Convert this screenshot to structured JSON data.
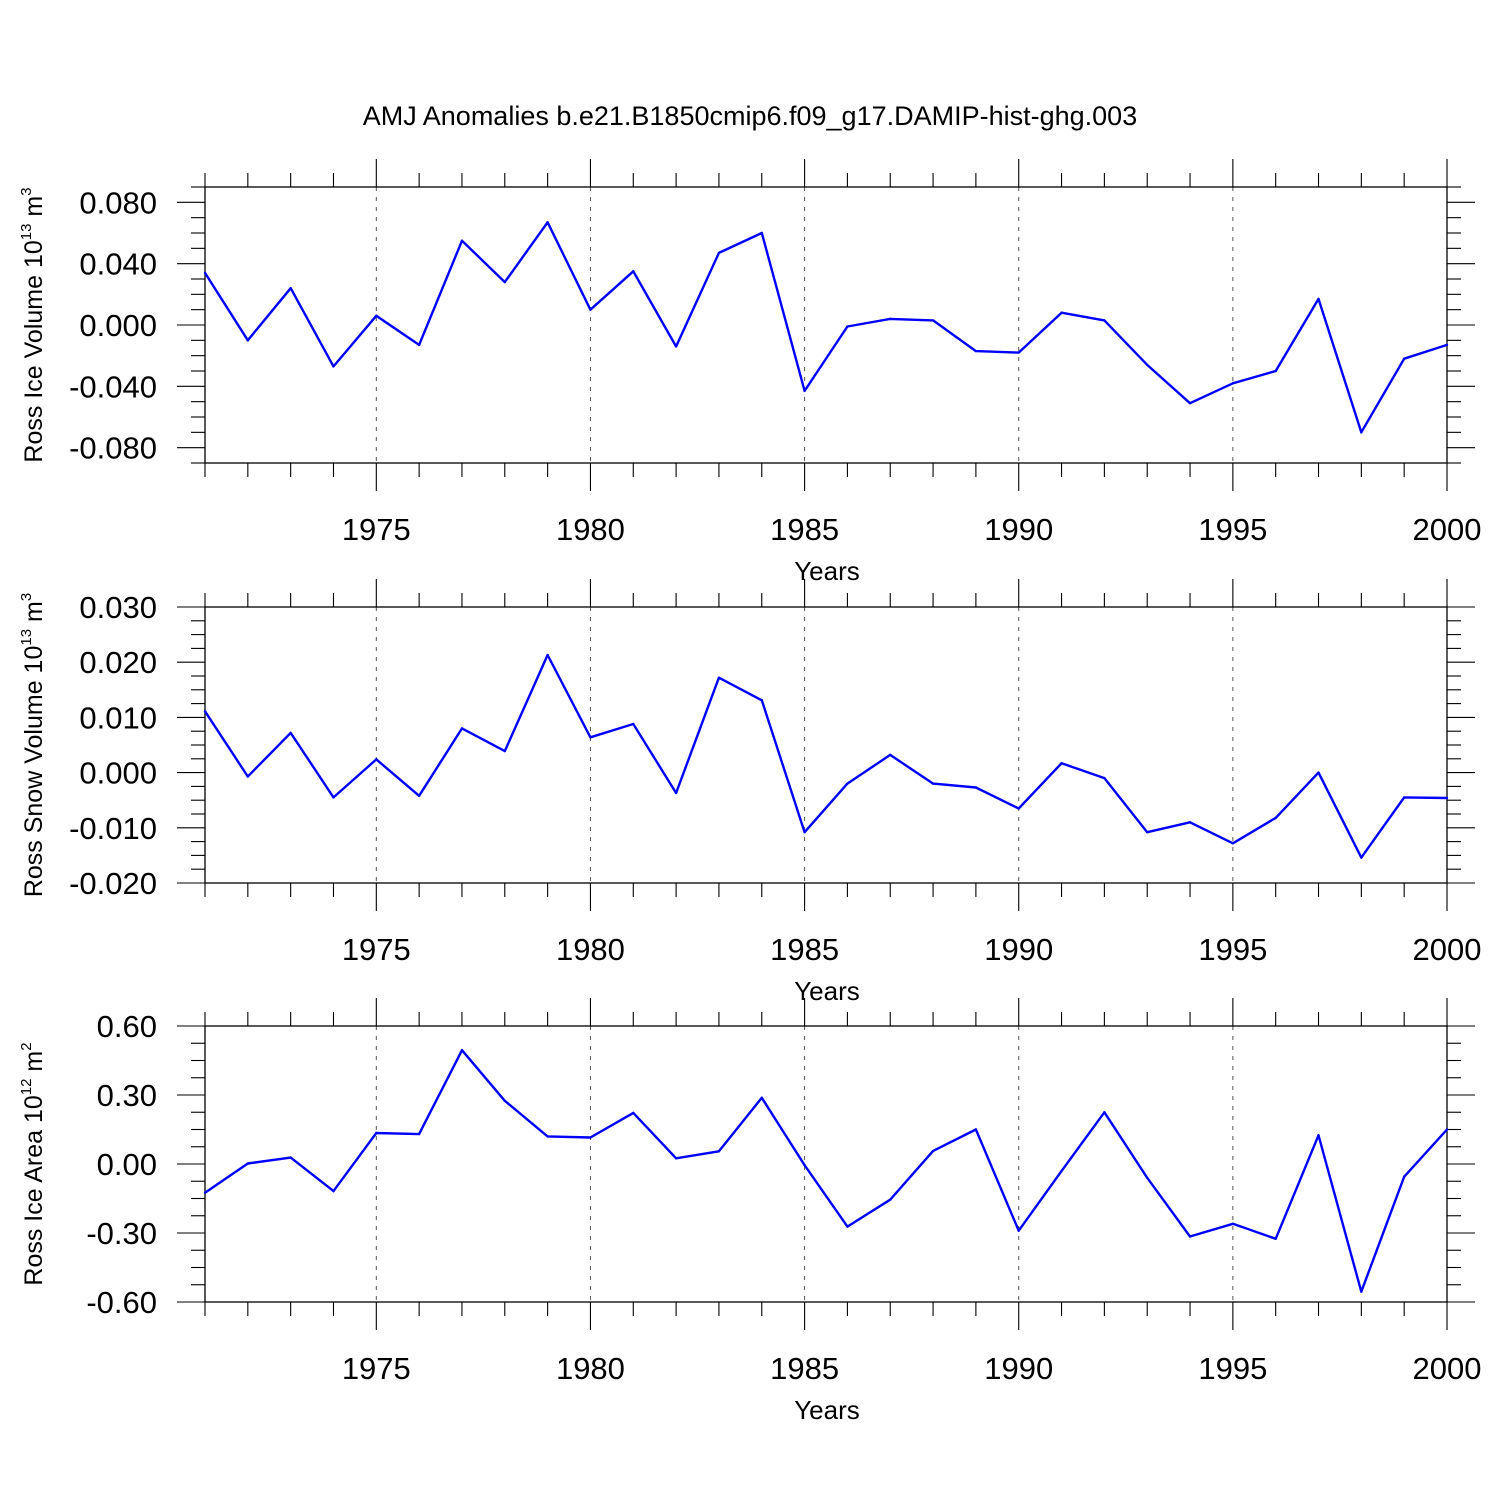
{
  "title": "AMJ Anomalies b.e21.B1850cmip6.f09_g17.DAMIP-hist-ghg.003",
  "colors": {
    "series": "#0000ff",
    "axes": "#000000",
    "grid": "#555555"
  },
  "chart_data": [
    {
      "type": "line",
      "xlabel": "Years",
      "ylabel": {
        "text": "Ross Ice Volume 10",
        "sup": "13",
        "unit": "m",
        "unit_sup": "3"
      },
      "xlim": [
        1971,
        2000
      ],
      "ylim": [
        -0.09,
        0.09
      ],
      "xticks": [
        1975,
        1980,
        1985,
        1990,
        1995,
        2000
      ],
      "xtick_labels": [
        "1975",
        "1980",
        "1985",
        "1990",
        "1995",
        "2000"
      ],
      "yticks": [
        -0.08,
        -0.04,
        0.0,
        0.04,
        0.08
      ],
      "ytick_labels": [
        "-0.080",
        "-0.040",
        "0.000",
        "0.040",
        "0.080"
      ],
      "grid": "dashed vertical lines at major x ticks",
      "x": [
        1971,
        1972,
        1973,
        1974,
        1975,
        1976,
        1977,
        1978,
        1979,
        1980,
        1981,
        1982,
        1983,
        1984,
        1985,
        1986,
        1987,
        1988,
        1989,
        1990,
        1991,
        1992,
        1993,
        1994,
        1995,
        1996,
        1997,
        1998,
        1999,
        2000
      ],
      "values": [
        0.034,
        -0.01,
        0.024,
        -0.027,
        0.006,
        -0.013,
        0.055,
        0.028,
        0.067,
        0.01,
        0.035,
        -0.014,
        0.047,
        0.06,
        -0.043,
        -0.001,
        0.004,
        0.003,
        -0.017,
        -0.018,
        0.008,
        0.003,
        -0.026,
        -0.051,
        -0.038,
        -0.03,
        0.017,
        -0.07,
        -0.022,
        -0.013
      ]
    },
    {
      "type": "line",
      "xlabel": "Years",
      "ylabel": {
        "text": "Ross Snow Volume 10",
        "sup": "13",
        "unit": "m",
        "unit_sup": "3"
      },
      "xlim": [
        1971,
        2000
      ],
      "ylim": [
        -0.02,
        0.03
      ],
      "xticks": [
        1975,
        1980,
        1985,
        1990,
        1995,
        2000
      ],
      "xtick_labels": [
        "1975",
        "1980",
        "1985",
        "1990",
        "1995",
        "2000"
      ],
      "yticks": [
        -0.02,
        -0.01,
        0.0,
        0.01,
        0.02,
        0.03
      ],
      "ytick_labels": [
        "-0.020",
        "-0.010",
        "0.000",
        "0.010",
        "0.020",
        "0.030"
      ],
      "grid": "dashed vertical lines at major x ticks",
      "x": [
        1971,
        1972,
        1973,
        1974,
        1975,
        1976,
        1977,
        1978,
        1979,
        1980,
        1981,
        1982,
        1983,
        1984,
        1985,
        1986,
        1987,
        1988,
        1989,
        1990,
        1991,
        1992,
        1993,
        1994,
        1995,
        1996,
        1997,
        1998,
        1999,
        2000
      ],
      "values": [
        0.0111,
        -0.0007,
        0.0072,
        -0.0045,
        0.0024,
        -0.0042,
        0.008,
        0.0039,
        0.0213,
        0.0064,
        0.0088,
        -0.0037,
        0.0172,
        0.0131,
        -0.0108,
        -0.002,
        0.0032,
        -0.002,
        -0.0027,
        -0.0065,
        0.0017,
        -0.001,
        -0.0108,
        -0.009,
        -0.0128,
        -0.0082,
        0.0,
        -0.0154,
        -0.0045,
        -0.0046
      ]
    },
    {
      "type": "line",
      "xlabel": "Years",
      "ylabel": {
        "text": "Ross Ice Area 10",
        "sup": "12",
        "unit": "m",
        "unit_sup": "2"
      },
      "xlim": [
        1971,
        2000
      ],
      "ylim": [
        -0.6,
        0.6
      ],
      "xticks": [
        1975,
        1980,
        1985,
        1990,
        1995,
        2000
      ],
      "xtick_labels": [
        "1975",
        "1980",
        "1985",
        "1990",
        "1995",
        "2000"
      ],
      "yticks": [
        -0.6,
        -0.3,
        0.0,
        0.3,
        0.6
      ],
      "ytick_labels": [
        "-0.60",
        "-0.30",
        "0.00",
        "0.30",
        "0.60"
      ],
      "grid": "dashed vertical lines at major x ticks",
      "x": [
        1971,
        1972,
        1973,
        1974,
        1975,
        1976,
        1977,
        1978,
        1979,
        1980,
        1981,
        1982,
        1983,
        1984,
        1985,
        1986,
        1987,
        1988,
        1989,
        1990,
        1991,
        1992,
        1993,
        1994,
        1995,
        1996,
        1997,
        1998,
        1999,
        2000
      ],
      "values": [
        -0.125,
        0.002,
        0.028,
        -0.118,
        0.135,
        0.13,
        0.495,
        0.275,
        0.12,
        0.115,
        0.222,
        0.025,
        0.055,
        0.288,
        -0.005,
        -0.272,
        -0.155,
        0.057,
        0.15,
        -0.29,
        -0.03,
        0.225,
        -0.06,
        -0.315,
        -0.26,
        -0.325,
        0.125,
        -0.555,
        -0.055,
        0.15
      ]
    }
  ]
}
